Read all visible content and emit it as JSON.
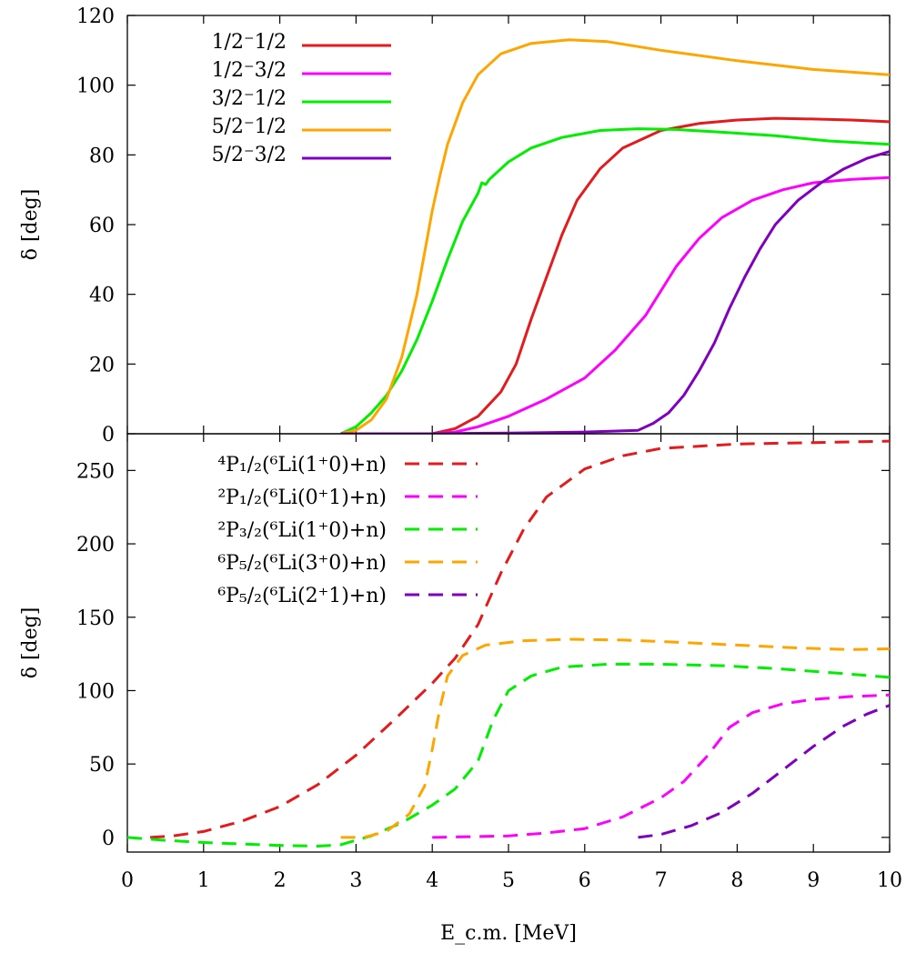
{
  "chart_data": [
    {
      "type": "line",
      "panel": "top",
      "ylabel": "δ [deg]",
      "xlim": [
        0,
        10
      ],
      "ylim": [
        0,
        120
      ],
      "yticks": [
        0,
        20,
        40,
        60,
        80,
        100,
        120
      ],
      "ytick_labels": [
        "0",
        "20",
        "40",
        "60",
        "80",
        "100",
        "120"
      ],
      "grid": false,
      "legend_position": "top-left",
      "series": [
        {
          "name": "1/2⁻1/2",
          "color": "#e41a1c",
          "dash": "solid",
          "points": [
            [
              2.8,
              0
            ],
            [
              3.5,
              0
            ],
            [
              4.0,
              0
            ],
            [
              4.3,
              1.5
            ],
            [
              4.6,
              5
            ],
            [
              4.9,
              12
            ],
            [
              5.1,
              20
            ],
            [
              5.3,
              33
            ],
            [
              5.5,
              45
            ],
            [
              5.7,
              57
            ],
            [
              5.9,
              67
            ],
            [
              6.2,
              76
            ],
            [
              6.5,
              82
            ],
            [
              7.0,
              87
            ],
            [
              7.5,
              89
            ],
            [
              8.0,
              90
            ],
            [
              8.5,
              90.5
            ],
            [
              9.0,
              90.3
            ],
            [
              9.5,
              90
            ],
            [
              10,
              89.5
            ]
          ]
        },
        {
          "name": "1/2⁻3/2",
          "color": "#ff00ff",
          "dash": "solid",
          "points": [
            [
              2.8,
              0
            ],
            [
              4.0,
              0
            ],
            [
              4.3,
              0.5
            ],
            [
              4.6,
              2
            ],
            [
              5.0,
              5
            ],
            [
              5.5,
              10
            ],
            [
              6.0,
              16
            ],
            [
              6.4,
              24
            ],
            [
              6.8,
              34
            ],
            [
              7.0,
              41
            ],
            [
              7.2,
              48
            ],
            [
              7.5,
              56
            ],
            [
              7.8,
              62
            ],
            [
              8.2,
              67
            ],
            [
              8.6,
              70
            ],
            [
              9.0,
              72
            ],
            [
              9.5,
              73
            ],
            [
              10,
              73.5
            ]
          ]
        },
        {
          "name": "3/2⁻1/2",
          "color": "#00ee00",
          "dash": "solid",
          "points": [
            [
              2.8,
              0
            ],
            [
              3.0,
              2
            ],
            [
              3.2,
              6
            ],
            [
              3.4,
              11
            ],
            [
              3.6,
              18
            ],
            [
              3.8,
              27
            ],
            [
              4.0,
              38
            ],
            [
              4.2,
              50
            ],
            [
              4.4,
              61
            ],
            [
              4.6,
              69
            ],
            [
              4.65,
              72
            ],
            [
              4.7,
              71.5
            ],
            [
              4.75,
              73
            ],
            [
              5.0,
              78
            ],
            [
              5.3,
              82
            ],
            [
              5.7,
              85
            ],
            [
              6.2,
              87
            ],
            [
              6.7,
              87.5
            ],
            [
              7.2,
              87.3
            ],
            [
              7.8,
              86.5
            ],
            [
              8.5,
              85.5
            ],
            [
              9.2,
              84
            ],
            [
              10,
              83
            ]
          ]
        },
        {
          "name": "5/2⁻1/2",
          "color": "#ffa500",
          "dash": "solid",
          "points": [
            [
              2.8,
              0
            ],
            [
              3.0,
              1
            ],
            [
              3.2,
              4
            ],
            [
              3.4,
              10
            ],
            [
              3.6,
              22
            ],
            [
              3.8,
              40
            ],
            [
              3.9,
              52
            ],
            [
              4.0,
              64
            ],
            [
              4.1,
              74
            ],
            [
              4.2,
              83
            ],
            [
              4.4,
              95
            ],
            [
              4.6,
              103
            ],
            [
              4.9,
              109
            ],
            [
              5.3,
              112
            ],
            [
              5.8,
              113
            ],
            [
              6.3,
              112.5
            ],
            [
              7.0,
              110
            ],
            [
              8.0,
              107
            ],
            [
              9.0,
              104.5
            ],
            [
              10,
              103
            ]
          ]
        },
        {
          "name": "5/2⁻3/2",
          "color": "#8000c0",
          "dash": "solid",
          "points": [
            [
              2.8,
              0
            ],
            [
              4.0,
              0
            ],
            [
              5.0,
              0.2
            ],
            [
              6.0,
              0.5
            ],
            [
              6.7,
              1
            ],
            [
              6.9,
              3
            ],
            [
              7.1,
              6
            ],
            [
              7.3,
              11
            ],
            [
              7.5,
              18
            ],
            [
              7.7,
              26
            ],
            [
              7.9,
              36
            ],
            [
              8.1,
              45
            ],
            [
              8.3,
              53
            ],
            [
              8.5,
              60
            ],
            [
              8.8,
              67
            ],
            [
              9.1,
              72
            ],
            [
              9.4,
              76
            ],
            [
              9.7,
              79
            ],
            [
              10,
              81
            ]
          ]
        }
      ]
    },
    {
      "type": "line",
      "panel": "bottom",
      "xlabel": "E_c.m. [MeV]",
      "ylabel": "δ [deg]",
      "xlim": [
        0,
        10
      ],
      "ylim": [
        -10,
        275
      ],
      "xticks": [
        0,
        1,
        2,
        3,
        4,
        5,
        6,
        7,
        8,
        9,
        10
      ],
      "xtick_labels": [
        "0",
        "1",
        "2",
        "3",
        "4",
        "5",
        "6",
        "7",
        "8",
        "9",
        "10"
      ],
      "yticks": [
        0,
        50,
        100,
        150,
        200,
        250
      ],
      "ytick_labels": [
        "0",
        "50",
        "100",
        "150",
        "200",
        "250"
      ],
      "grid": false,
      "legend_position": "top-left",
      "series": [
        {
          "name": "⁴P₁/₂(⁶Li(1⁺0)+n)",
          "color": "#e41a1c",
          "dash": "dashed",
          "points": [
            [
              0.3,
              0
            ],
            [
              0.6,
              1
            ],
            [
              1.0,
              4
            ],
            [
              1.5,
              11
            ],
            [
              2.0,
              21
            ],
            [
              2.5,
              36
            ],
            [
              3.0,
              56
            ],
            [
              3.5,
              80
            ],
            [
              4.0,
              105
            ],
            [
              4.3,
              122
            ],
            [
              4.6,
              145
            ],
            [
              4.9,
              180
            ],
            [
              5.2,
              210
            ],
            [
              5.5,
              232
            ],
            [
              6.0,
              251
            ],
            [
              6.5,
              260
            ],
            [
              7.0,
              265
            ],
            [
              8.0,
              268
            ],
            [
              9.0,
              269
            ],
            [
              10,
              270
            ]
          ]
        },
        {
          "name": "²P₁/₂(⁶Li(0⁺1)+n)",
          "color": "#ff00ff",
          "dash": "dashed",
          "points": [
            [
              4.0,
              0
            ],
            [
              4.5,
              0.5
            ],
            [
              5.0,
              1
            ],
            [
              5.5,
              3
            ],
            [
              6.0,
              6
            ],
            [
              6.5,
              14
            ],
            [
              7.0,
              27
            ],
            [
              7.3,
              38
            ],
            [
              7.6,
              55
            ],
            [
              7.9,
              75
            ],
            [
              8.2,
              85
            ],
            [
              8.6,
              91
            ],
            [
              9.0,
              94
            ],
            [
              9.5,
              96
            ],
            [
              10,
              97
            ]
          ]
        },
        {
          "name": "²P₃/₂(⁶Li(1⁺0)+n)",
          "color": "#00ee00",
          "dash": "dashed",
          "points": [
            [
              0,
              0
            ],
            [
              0.5,
              -2
            ],
            [
              1.0,
              -3.5
            ],
            [
              1.5,
              -4.5
            ],
            [
              2.0,
              -5.5
            ],
            [
              2.5,
              -6
            ],
            [
              2.8,
              -5
            ],
            [
              3.2,
              1
            ],
            [
              3.6,
              10
            ],
            [
              4.0,
              22
            ],
            [
              4.3,
              33
            ],
            [
              4.6,
              52
            ],
            [
              4.8,
              80
            ],
            [
              5.0,
              100
            ],
            [
              5.3,
              110
            ],
            [
              5.7,
              116
            ],
            [
              6.3,
              118
            ],
            [
              7.0,
              118
            ],
            [
              7.8,
              117
            ],
            [
              8.5,
              115
            ],
            [
              9.3,
              112
            ],
            [
              10,
              109
            ]
          ]
        },
        {
          "name": "⁶P₅/₂(⁶Li(3⁺0)+n)",
          "color": "#ffa500",
          "dash": "dashed",
          "points": [
            [
              2.8,
              0
            ],
            [
              3.1,
              0
            ],
            [
              3.4,
              4
            ],
            [
              3.7,
              16
            ],
            [
              3.9,
              35
            ],
            [
              4.0,
              60
            ],
            [
              4.1,
              88
            ],
            [
              4.2,
              110
            ],
            [
              4.4,
              124
            ],
            [
              4.7,
              131
            ],
            [
              5.2,
              134
            ],
            [
              5.8,
              135
            ],
            [
              6.5,
              134.5
            ],
            [
              7.2,
              133
            ],
            [
              8.0,
              131
            ],
            [
              8.8,
              129
            ],
            [
              9.5,
              128
            ],
            [
              10,
              128.5
            ]
          ]
        },
        {
          "name": "⁶P₅/₂(⁶Li(2⁺1)+n)",
          "color": "#8000c0",
          "dash": "dashed",
          "points": [
            [
              6.7,
              0
            ],
            [
              7.0,
              2
            ],
            [
              7.4,
              8
            ],
            [
              7.8,
              17
            ],
            [
              8.2,
              30
            ],
            [
              8.6,
              46
            ],
            [
              9.0,
              62
            ],
            [
              9.4,
              76
            ],
            [
              9.7,
              84
            ],
            [
              10,
              90
            ]
          ]
        }
      ]
    }
  ]
}
